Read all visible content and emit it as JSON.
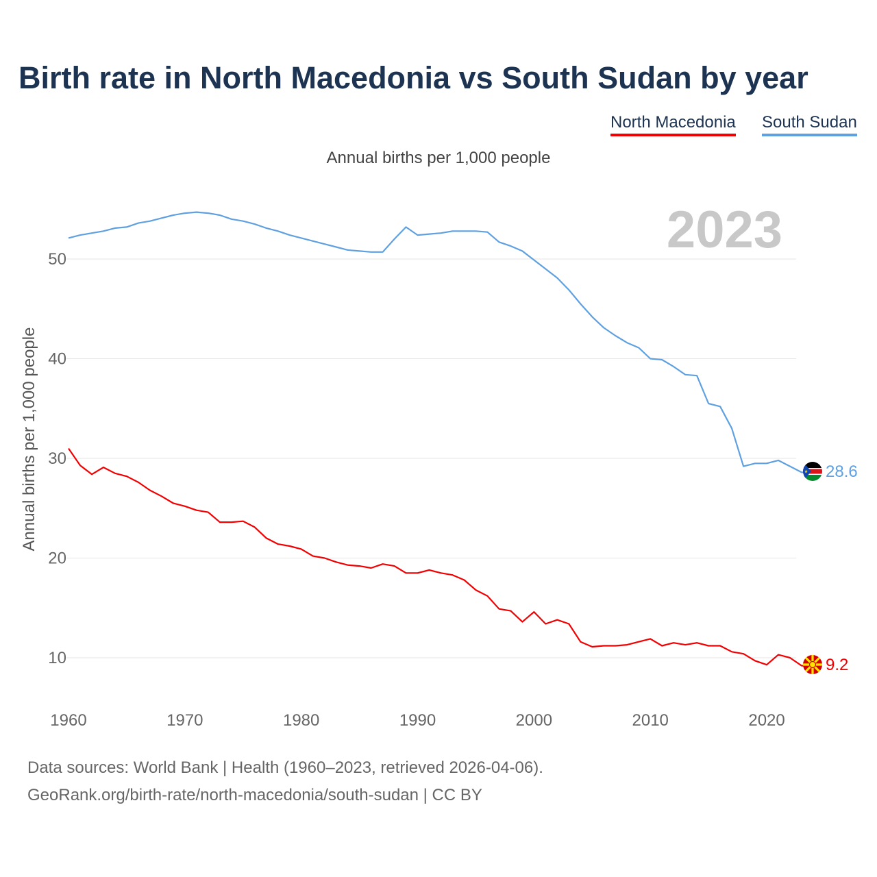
{
  "title": "Birth rate in North Macedonia vs South Sudan by year",
  "legend": {
    "nm_label": "North Macedonia",
    "ss_label": "South Sudan"
  },
  "subtitle": "Annual births per 1,000 people",
  "year_badge": "2023",
  "footer": {
    "line1": "Data sources: World Bank | Health (1960–2023, retrieved 2026-04-06).",
    "line2": "GeoRank.org/birth-rate/north-macedonia/south-sudan | CC BY"
  },
  "chart_data": {
    "type": "line",
    "title": "Birth rate in North Macedonia vs South Sudan by year",
    "ylabel": "Annual births per 1,000 people",
    "xlabel": "",
    "xlim": [
      1960,
      2023
    ],
    "ylim": [
      5,
      57
    ],
    "yticks": [
      10,
      20,
      30,
      40,
      50
    ],
    "xticks": [
      1960,
      1970,
      1980,
      1990,
      2000,
      2010,
      2020
    ],
    "grid": true,
    "years": [
      1960,
      1961,
      1962,
      1963,
      1964,
      1965,
      1966,
      1967,
      1968,
      1969,
      1970,
      1971,
      1972,
      1973,
      1974,
      1975,
      1976,
      1977,
      1978,
      1979,
      1980,
      1981,
      1982,
      1983,
      1984,
      1985,
      1986,
      1987,
      1988,
      1989,
      1990,
      1991,
      1992,
      1993,
      1994,
      1995,
      1996,
      1997,
      1998,
      1999,
      2000,
      2001,
      2002,
      2003,
      2004,
      2005,
      2006,
      2007,
      2008,
      2009,
      2010,
      2011,
      2012,
      2013,
      2014,
      2015,
      2016,
      2017,
      2018,
      2019,
      2020,
      2021,
      2022,
      2023
    ],
    "series": [
      {
        "name": "South Sudan",
        "color": "#5fa0e0",
        "end_label": "28.6",
        "values": [
          52.1,
          52.4,
          52.6,
          52.8,
          53.1,
          53.2,
          53.6,
          53.8,
          54.1,
          54.4,
          54.6,
          54.7,
          54.6,
          54.4,
          54.0,
          53.8,
          53.5,
          53.1,
          52.8,
          52.4,
          52.1,
          51.8,
          51.5,
          51.2,
          50.9,
          50.8,
          50.7,
          50.7,
          52.0,
          53.2,
          52.4,
          52.5,
          52.6,
          52.8,
          52.8,
          52.8,
          52.7,
          51.7,
          51.3,
          50.8,
          49.9,
          49.0,
          48.1,
          46.9,
          45.5,
          44.2,
          43.1,
          42.3,
          41.6,
          41.1,
          40.0,
          39.9,
          39.2,
          38.4,
          38.3,
          35.5,
          35.2,
          33.0,
          29.2,
          29.5,
          29.5,
          29.8,
          29.2,
          28.6
        ]
      },
      {
        "name": "North Macedonia",
        "color": "#f00000",
        "end_label": "9.2",
        "values": [
          31.0,
          29.3,
          28.4,
          29.1,
          28.5,
          28.2,
          27.6,
          26.8,
          26.2,
          25.5,
          25.2,
          24.8,
          24.6,
          23.6,
          23.6,
          23.7,
          23.1,
          22.0,
          21.4,
          21.2,
          20.9,
          20.2,
          20.0,
          19.6,
          19.3,
          19.2,
          19.0,
          19.4,
          19.2,
          18.5,
          18.5,
          18.8,
          18.5,
          18.3,
          17.8,
          16.8,
          16.2,
          14.9,
          14.7,
          13.6,
          14.6,
          13.4,
          13.8,
          13.4,
          11.6,
          11.1,
          11.2,
          11.2,
          11.3,
          11.6,
          11.9,
          11.2,
          11.5,
          11.3,
          11.5,
          11.2,
          11.2,
          10.6,
          10.4,
          9.7,
          9.3,
          10.3,
          10.0,
          9.2
        ]
      }
    ]
  }
}
